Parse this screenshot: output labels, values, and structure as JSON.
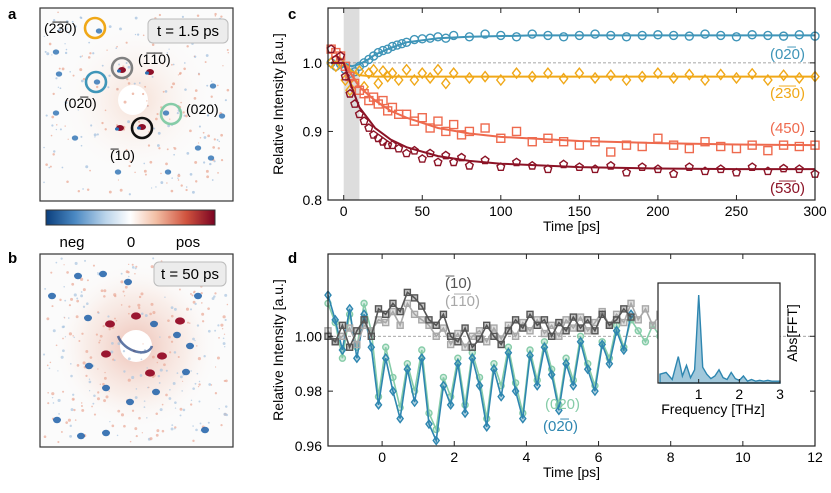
{
  "panels": {
    "a": {
      "label": "a",
      "time": "t = 1.5 ps",
      "spots": [
        "(2̅3̅0)",
        "(1̅1̅0)",
        "(02̅0)",
        "(020)",
        "(̅10)"
      ]
    },
    "b": {
      "label": "b",
      "time": "t = 50 ps"
    },
    "colorbar": {
      "ticks": [
        "neg",
        "0",
        "pos"
      ],
      "colors": [
        "#0b3f7d",
        "#4a88c2",
        "#b9d3ea",
        "#ffffff",
        "#f3bfa5",
        "#d0533e",
        "#7a0322"
      ]
    }
  },
  "chart_data": [
    {
      "panel": "c",
      "type": "scatter",
      "xlabel": "Time [ps]",
      "ylabel": "Relative Intensity [a.u.]",
      "xlim": [
        -10,
        300
      ],
      "ylim": [
        0.8,
        1.08
      ],
      "xticks": [
        0,
        50,
        100,
        150,
        200,
        250,
        300
      ],
      "yticks": [
        0.8,
        0.9,
        1.0
      ],
      "shaded_region": [
        0,
        10
      ],
      "reference_line": 1.0,
      "series": [
        {
          "name": "(02̅0)",
          "color": "#3f95b8",
          "marker": "circle",
          "x": [
            -8,
            -5,
            -2,
            1,
            4,
            7,
            10,
            13,
            16,
            19,
            22,
            25,
            28,
            31,
            34,
            37,
            40,
            45,
            50,
            55,
            60,
            65,
            70,
            80,
            90,
            100,
            110,
            120,
            130,
            140,
            150,
            160,
            170,
            180,
            190,
            200,
            210,
            220,
            230,
            240,
            250,
            260,
            270,
            280,
            290,
            300
          ],
          "y": [
            1.0,
            0.995,
            0.998,
            0.99,
            0.985,
            0.987,
            0.995,
            1.0,
            1.005,
            1.01,
            1.015,
            1.018,
            1.02,
            1.024,
            1.026,
            1.028,
            1.03,
            1.034,
            1.035,
            1.036,
            1.038,
            1.036,
            1.04,
            1.038,
            1.042,
            1.04,
            1.038,
            1.042,
            1.04,
            1.038,
            1.04,
            1.042,
            1.04,
            1.038,
            1.04,
            1.041,
            1.04,
            1.039,
            1.042,
            1.04,
            1.038,
            1.041,
            1.04,
            1.039,
            1.041,
            1.039
          ],
          "fit_x": [
            -8,
            0,
            5,
            10,
            15,
            20,
            30,
            40,
            60,
            80,
            120,
            160,
            200,
            250,
            300
          ],
          "fit_y": [
            1.0,
            1.0,
            0.995,
            0.998,
            1.004,
            1.012,
            1.022,
            1.03,
            1.036,
            1.038,
            1.04,
            1.04,
            1.04,
            1.04,
            1.04
          ]
        },
        {
          "name": "(2̅3̅0)",
          "color": "#f0a818",
          "marker": "diamond",
          "x": [
            -8,
            -5,
            -2,
            1,
            4,
            7,
            10,
            13,
            16,
            19,
            22,
            25,
            28,
            31,
            35,
            40,
            45,
            50,
            55,
            60,
            65,
            70,
            80,
            90,
            100,
            110,
            120,
            130,
            140,
            150,
            160,
            170,
            180,
            190,
            200,
            210,
            220,
            230,
            240,
            250,
            260,
            270,
            280,
            290,
            300
          ],
          "y": [
            1.0,
            0.995,
            1.0,
            0.975,
            0.96,
            0.97,
            0.988,
            0.965,
            0.985,
            0.99,
            0.97,
            0.988,
            0.98,
            0.985,
            0.975,
            0.99,
            0.975,
            0.985,
            0.978,
            0.99,
            0.97,
            0.985,
            0.978,
            0.98,
            0.975,
            0.985,
            0.98,
            0.985,
            0.977,
            0.985,
            0.978,
            0.982,
            0.975,
            0.98,
            0.985,
            0.978,
            0.983,
            0.975,
            0.983,
            0.978,
            0.984,
            0.975,
            0.982,
            0.978,
            0.98
          ],
          "fit_x": [
            -8,
            0,
            5,
            10,
            20,
            40,
            80,
            150,
            300
          ],
          "fit_y": [
            1.0,
            1.0,
            0.988,
            0.982,
            0.98,
            0.98,
            0.98,
            0.98,
            0.98
          ]
        },
        {
          "name": "(450)",
          "color": "#ee6a4e",
          "marker": "square",
          "x": [
            -8,
            -5,
            -2,
            1,
            4,
            7,
            10,
            13,
            16,
            19,
            22,
            25,
            28,
            31,
            35,
            40,
            45,
            50,
            55,
            60,
            65,
            70,
            75,
            80,
            90,
            100,
            110,
            120,
            130,
            140,
            150,
            160,
            170,
            180,
            190,
            200,
            210,
            220,
            230,
            240,
            250,
            260,
            270,
            280,
            290,
            300
          ],
          "y": [
            1.02,
            1.015,
            1.01,
            0.995,
            0.98,
            0.97,
            0.96,
            0.955,
            0.945,
            0.95,
            0.94,
            0.945,
            0.93,
            0.935,
            0.925,
            0.925,
            0.915,
            0.92,
            0.905,
            0.915,
            0.9,
            0.91,
            0.895,
            0.9,
            0.905,
            0.89,
            0.9,
            0.885,
            0.89,
            0.885,
            0.88,
            0.885,
            0.87,
            0.88,
            0.878,
            0.89,
            0.88,
            0.875,
            0.885,
            0.878,
            0.875,
            0.88,
            0.872,
            0.88,
            0.878,
            0.88
          ],
          "fit_x": [
            -8,
            0,
            5,
            10,
            20,
            30,
            40,
            60,
            80,
            100,
            150,
            200,
            250,
            300
          ],
          "fit_y": [
            1.0,
            1.0,
            0.982,
            0.965,
            0.945,
            0.93,
            0.92,
            0.905,
            0.897,
            0.892,
            0.886,
            0.883,
            0.881,
            0.88
          ]
        },
        {
          "name": "(5̅3̅0)",
          "color": "#8c1326",
          "marker": "pentagon",
          "x": [
            -8,
            -5,
            -2,
            1,
            4,
            7,
            10,
            13,
            16,
            19,
            22,
            25,
            28,
            31,
            35,
            40,
            45,
            50,
            55,
            60,
            65,
            70,
            75,
            80,
            90,
            100,
            110,
            120,
            130,
            140,
            150,
            160,
            170,
            180,
            190,
            200,
            210,
            220,
            230,
            240,
            250,
            260,
            270,
            280,
            290,
            300
          ],
          "y": [
            1.02,
            1.005,
            1.01,
            0.98,
            0.955,
            0.94,
            0.925,
            0.915,
            0.905,
            0.895,
            0.89,
            0.885,
            0.88,
            0.88,
            0.875,
            0.868,
            0.872,
            0.86,
            0.868,
            0.855,
            0.865,
            0.855,
            0.862,
            0.85,
            0.858,
            0.848,
            0.855,
            0.85,
            0.845,
            0.852,
            0.848,
            0.845,
            0.85,
            0.84,
            0.848,
            0.845,
            0.838,
            0.848,
            0.842,
            0.845,
            0.84,
            0.848,
            0.842,
            0.846,
            0.845,
            0.838
          ],
          "fit_x": [
            -8,
            0,
            5,
            10,
            20,
            30,
            40,
            60,
            80,
            100,
            150,
            200,
            250,
            300
          ],
          "fit_y": [
            1.0,
            1.0,
            0.965,
            0.935,
            0.905,
            0.888,
            0.877,
            0.864,
            0.857,
            0.853,
            0.848,
            0.846,
            0.845,
            0.845
          ]
        }
      ]
    },
    {
      "panel": "d",
      "type": "line",
      "xlabel": "Time [ps]",
      "ylabel": "Relative Intensity [a.u.]",
      "xlim": [
        -1.5,
        12
      ],
      "ylim": [
        0.96,
        1.03
      ],
      "xticks": [
        0,
        2,
        4,
        6,
        8,
        10,
        12
      ],
      "yticks": [
        0.96,
        0.98,
        1.0
      ],
      "reference_line": 1.0,
      "series": [
        {
          "name": "(̅10)",
          "color": "#555555",
          "marker": "square",
          "x": [
            -1.5,
            -1.3,
            -1.1,
            -0.9,
            -0.7,
            -0.5,
            -0.3,
            -0.1,
            0.1,
            0.3,
            0.5,
            0.7,
            0.9,
            1.1,
            1.3,
            1.5,
            1.7,
            1.9,
            2.1,
            2.3,
            2.5,
            2.7,
            2.9,
            3.1,
            3.3,
            3.5,
            3.7,
            3.9,
            4.1,
            4.3,
            4.5,
            4.7,
            4.9,
            5.1,
            5.3,
            5.5,
            5.7,
            5.9,
            6.1,
            6.3,
            6.5,
            6.7,
            6.9
          ],
          "y": [
            1.0,
            0.998,
            1.004,
            0.996,
            1.002,
            1.006,
            1.0,
            1.01,
            1.008,
            1.012,
            1.009,
            1.016,
            1.014,
            1.011,
            1.006,
            1.004,
            1.008,
            1.0,
            0.998,
            1.003,
            0.996,
            0.999,
            1.004,
            1.0,
            0.997,
            1.002,
            1.006,
            1.003,
            1.008,
            1.004,
            1.006,
            1.0,
            1.005,
            1.002,
            1.007,
            1.003,
            1.006,
            1.002,
            1.008,
            1.004,
            1.006,
            1.01,
            1.007
          ]
        },
        {
          "name": "(1̅1̅0)",
          "color": "#a8a8a8",
          "marker": "square",
          "x": [
            -1.5,
            -1.3,
            -1.1,
            -0.9,
            -0.7,
            -0.5,
            -0.3,
            -0.1,
            0.1,
            0.3,
            0.5,
            0.7,
            0.9,
            1.1,
            1.3,
            1.5,
            1.7,
            1.9,
            2.1,
            2.3,
            2.5,
            2.7,
            2.9,
            3.1,
            3.3,
            3.5,
            3.7,
            3.9,
            4.1,
            4.3,
            4.5,
            4.7,
            4.9,
            5.1,
            5.3,
            5.5,
            5.7,
            5.9,
            6.1,
            6.3,
            6.5,
            6.7,
            6.9,
            7.1,
            7.3,
            7.5,
            7.7
          ],
          "y": [
            1.002,
            0.998,
            1.0,
            1.003,
            0.997,
            1.004,
            1.002,
            1.006,
            1.005,
            1.009,
            1.004,
            1.012,
            1.008,
            1.006,
            1.004,
            1.0,
            1.003,
            0.997,
            1.001,
            0.996,
            1.0,
            1.002,
            0.998,
            1.003,
            0.999,
            1.004,
            1.0,
            1.005,
            1.002,
            1.006,
            1.001,
            1.004,
            1.0,
            1.006,
            1.003,
            1.007,
            1.002,
            1.005,
            1.009,
            1.004,
            1.008,
            1.005,
            1.012,
            1.006,
            1.01,
            1.004,
            1.008
          ]
        },
        {
          "name": "(020)",
          "color": "#86cca8",
          "marker": "circle",
          "x": [
            -1.5,
            -1.3,
            -1.1,
            -0.9,
            -0.7,
            -0.5,
            -0.3,
            -0.1,
            0.1,
            0.3,
            0.5,
            0.7,
            0.9,
            1.1,
            1.3,
            1.5,
            1.7,
            1.9,
            2.1,
            2.3,
            2.5,
            2.7,
            2.9,
            3.1,
            3.3,
            3.5,
            3.7,
            3.9,
            4.1,
            4.3,
            4.5,
            4.7,
            4.9,
            5.1,
            5.3,
            5.5,
            5.7,
            5.9,
            6.1,
            6.3,
            6.5,
            6.7,
            6.9,
            7.1,
            7.3,
            7.5,
            7.7
          ],
          "y": [
            1.012,
            1.005,
            0.992,
            1.008,
            0.996,
            1.012,
            1.002,
            0.978,
            0.996,
            0.985,
            0.974,
            0.99,
            0.98,
            0.995,
            0.972,
            0.966,
            0.985,
            0.978,
            0.992,
            0.975,
            0.994,
            0.985,
            0.97,
            0.99,
            0.982,
            0.996,
            0.983,
            0.972,
            0.995,
            0.984,
            0.998,
            0.988,
            0.975,
            0.992,
            0.984,
            1.0,
            0.99,
            0.982,
            0.998,
            0.992,
            1.004,
            0.996,
            1.006,
            1.002,
            0.998,
            1.004,
            1.0
          ]
        },
        {
          "name": "(02̅0)",
          "color": "#2e86b0",
          "marker": "diamond",
          "x": [
            -1.5,
            -1.3,
            -1.1,
            -0.9,
            -0.7,
            -0.5,
            -0.3,
            -0.1,
            0.1,
            0.3,
            0.5,
            0.7,
            0.9,
            1.1,
            1.3,
            1.5,
            1.7,
            1.9,
            2.1,
            2.3,
            2.5,
            2.7,
            2.9,
            3.1,
            3.3,
            3.5,
            3.7,
            3.9,
            4.1,
            4.3,
            4.5,
            4.7,
            4.9,
            5.1,
            5.3,
            5.5,
            5.7,
            5.9,
            6.1,
            6.3,
            6.5,
            6.7,
            6.9
          ],
          "y": [
            1.015,
            1.006,
            0.995,
            1.01,
            0.992,
            1.008,
            0.996,
            0.975,
            0.992,
            0.98,
            0.97,
            0.988,
            0.976,
            0.992,
            0.968,
            0.962,
            0.982,
            0.975,
            0.99,
            0.972,
            0.992,
            0.982,
            0.967,
            0.988,
            0.978,
            0.994,
            0.98,
            0.97,
            0.993,
            0.982,
            0.996,
            0.986,
            0.973,
            0.99,
            0.982,
            0.998,
            0.988,
            0.98,
            0.997,
            0.99,
            1.002,
            0.995,
            1.008
          ]
        }
      ],
      "inset": {
        "type": "area",
        "xlabel": "Frequency [THz]",
        "ylabel": "Abs[FFT]",
        "xlim": [
          0,
          3
        ],
        "xticks": [
          1,
          2,
          3
        ],
        "color": "#2e86b0",
        "x": [
          0.05,
          0.2,
          0.35,
          0.5,
          0.6,
          0.7,
          0.8,
          0.9,
          0.95,
          1.0,
          1.05,
          1.1,
          1.2,
          1.3,
          1.4,
          1.5,
          1.6,
          1.7,
          1.8,
          1.9,
          2.0,
          2.1,
          2.2,
          2.3,
          2.4,
          2.5,
          2.6,
          2.7,
          2.8,
          2.9,
          3.0
        ],
        "y": [
          0.1,
          0.12,
          0.04,
          0.3,
          0.08,
          0.2,
          0.06,
          0.15,
          0.55,
          1.0,
          0.6,
          0.18,
          0.1,
          0.05,
          0.08,
          0.15,
          0.06,
          0.04,
          0.12,
          0.05,
          0.03,
          0.08,
          0.02,
          0.04,
          0.02,
          0.03,
          0.02,
          0.03,
          0.02,
          0.02,
          0.02
        ]
      }
    }
  ]
}
